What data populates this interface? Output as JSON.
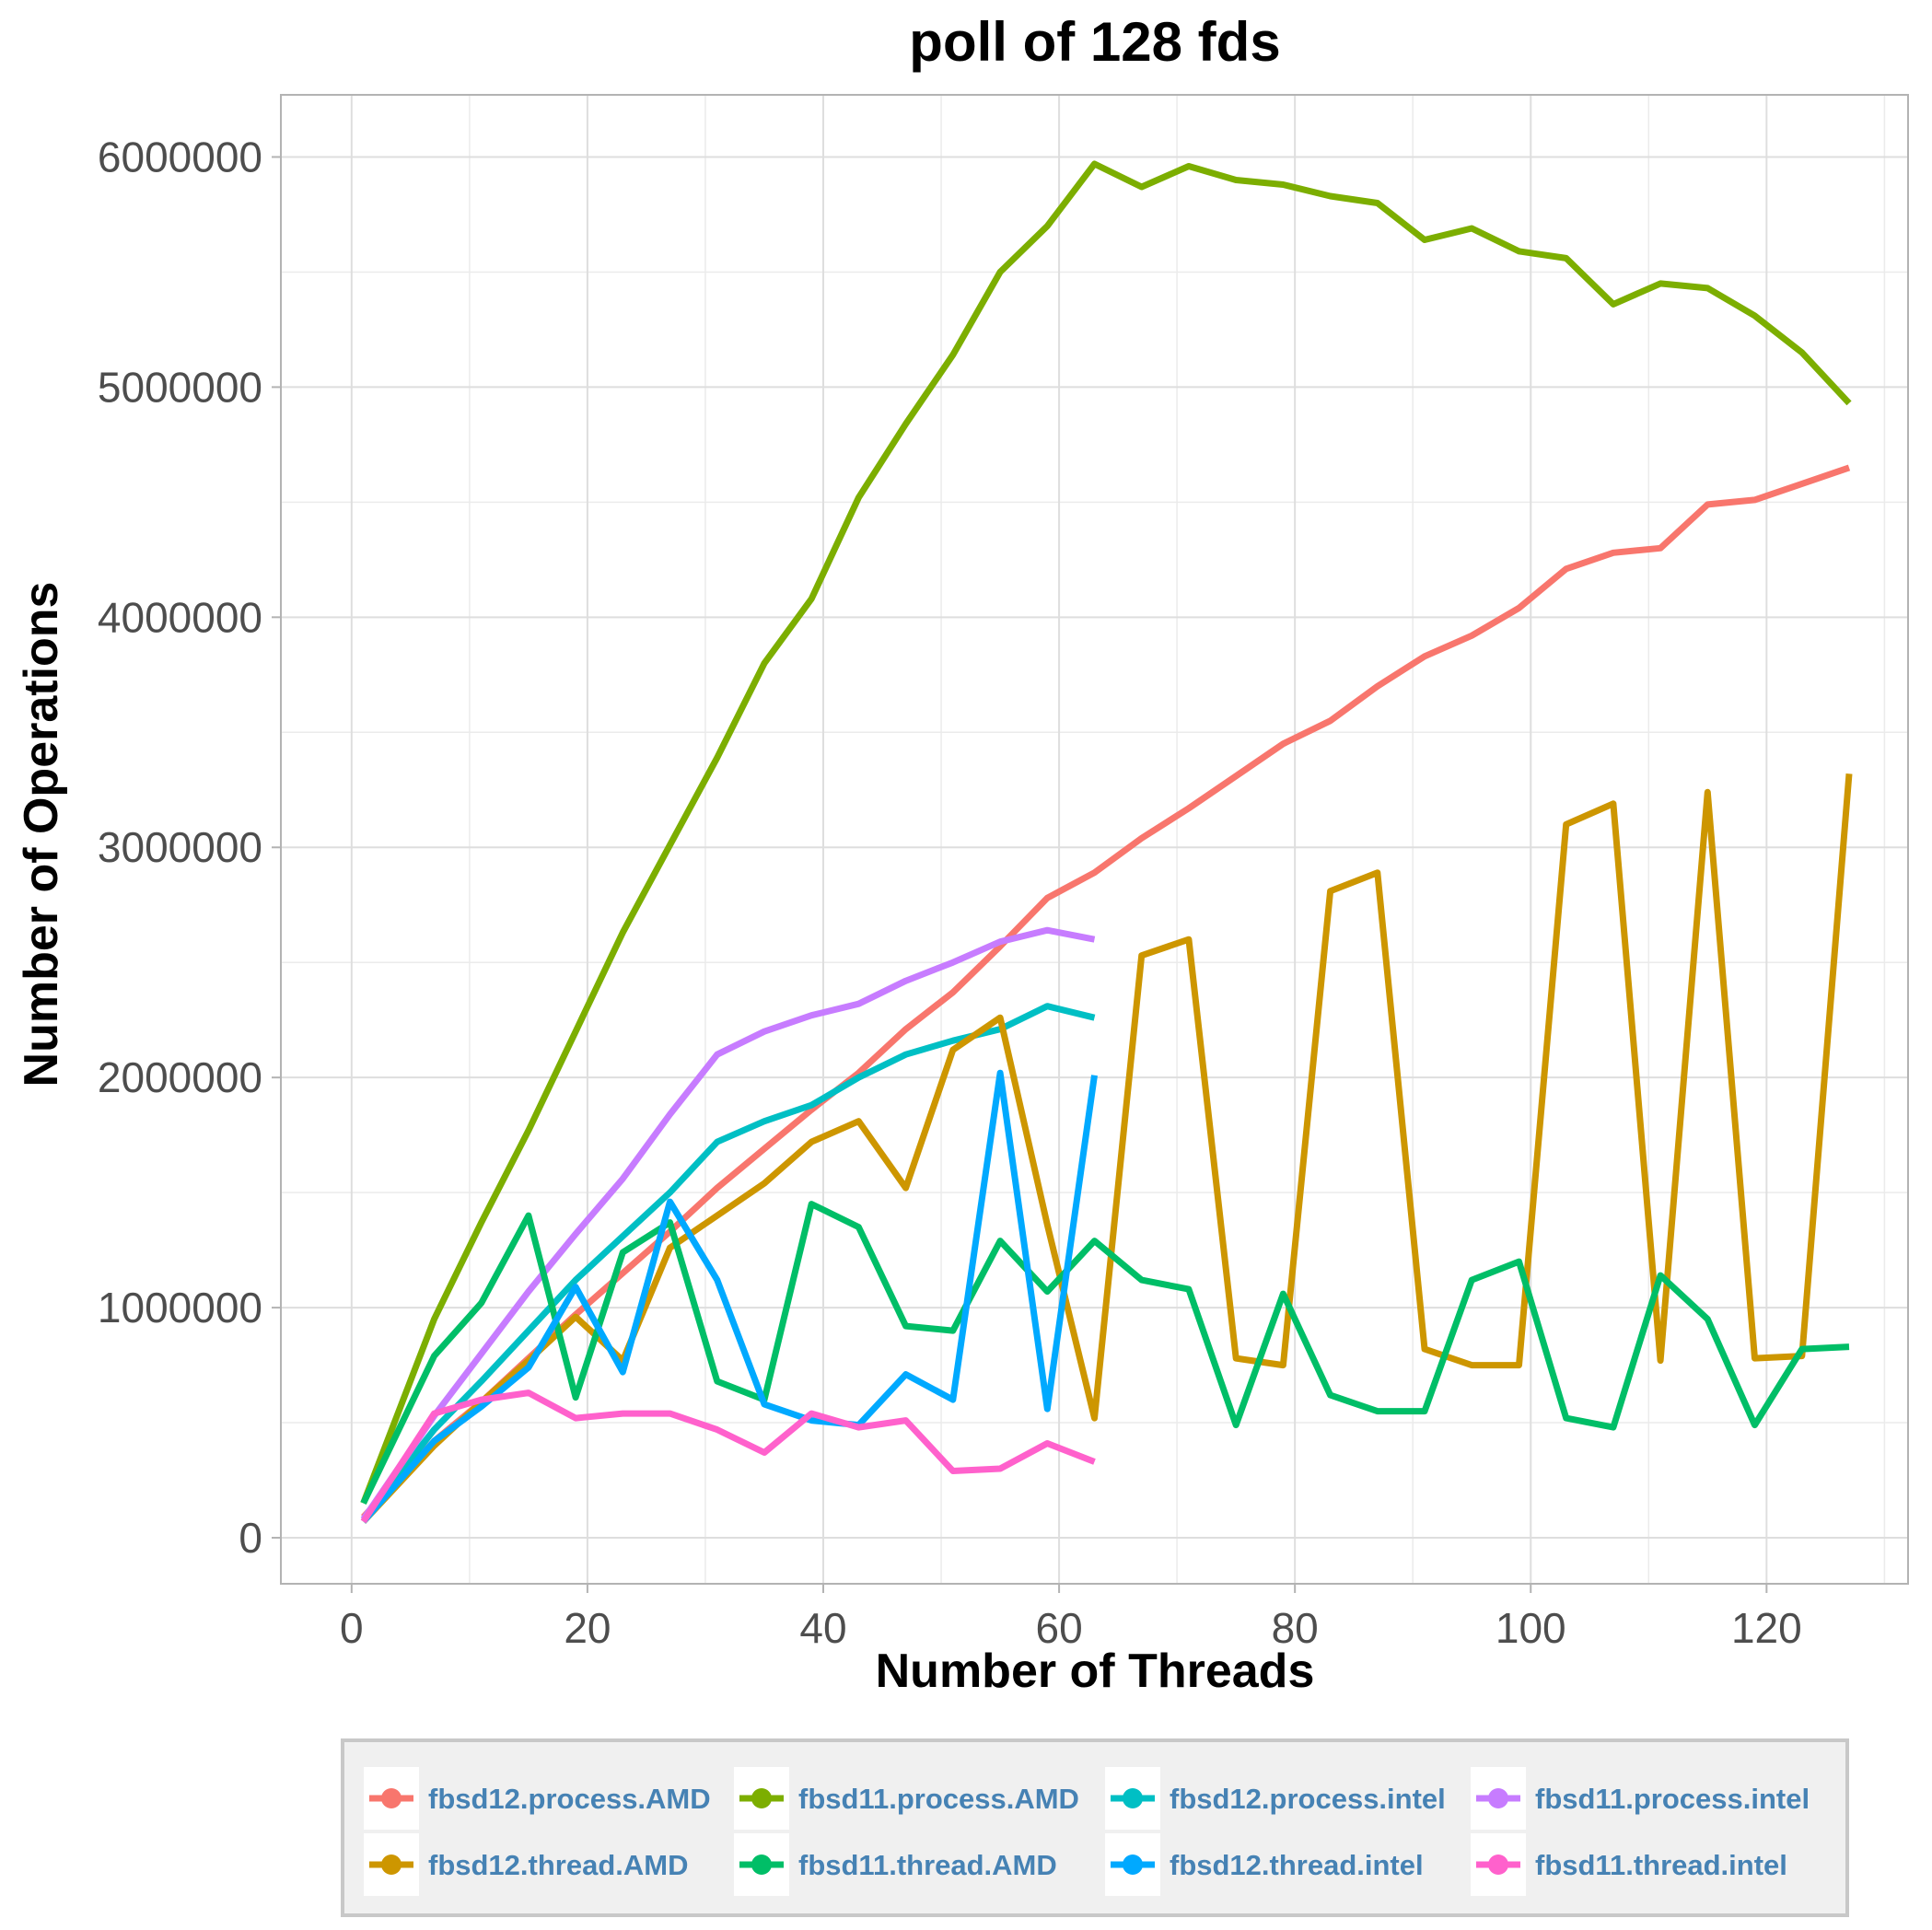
{
  "chart_data": {
    "type": "line",
    "title": "poll of 128 fds",
    "xlabel": "Number of Threads",
    "ylabel": "Number of Operations",
    "xlim": [
      -6,
      132
    ],
    "ylim": [
      -200000,
      6270000
    ],
    "xticks": [
      0,
      20,
      40,
      60,
      80,
      100,
      120
    ],
    "xtick_labels": [
      "0",
      "20",
      "40",
      "60",
      "80",
      "100",
      "120"
    ],
    "yticks": [
      0,
      1000000,
      2000000,
      3000000,
      4000000,
      5000000,
      6000000
    ],
    "ytick_labels": [
      "0",
      "1000000",
      "2000000",
      "3000000",
      "4000000",
      "5000000",
      "6000000"
    ],
    "grid": true,
    "legend_position": "bottom",
    "series": [
      {
        "name": "fbsd12.process.AMD",
        "color": "#F8766D",
        "x": [
          1,
          7,
          11,
          15,
          19,
          23,
          27,
          31,
          35,
          39,
          43,
          47,
          51,
          55,
          59,
          63,
          67,
          71,
          75,
          79,
          83,
          87,
          91,
          95,
          99,
          103,
          107,
          111,
          115,
          119,
          123,
          127
        ],
        "y": [
          90000,
          420000,
          590000,
          780000,
          970000,
          1150000,
          1330000,
          1520000,
          1690000,
          1860000,
          2020000,
          2210000,
          2370000,
          2570000,
          2780000,
          2890000,
          3040000,
          3170000,
          3310000,
          3450000,
          3550000,
          3700000,
          3830000,
          3920000,
          4040000,
          4210000,
          4280000,
          4300000,
          4490000,
          4510000,
          4580000,
          4650000
        ]
      },
      {
        "name": "fbsd11.process.AMD",
        "color": "#7CAE00",
        "x": [
          1,
          7,
          11,
          15,
          19,
          23,
          27,
          31,
          35,
          39,
          43,
          47,
          51,
          55,
          59,
          63,
          67,
          71,
          75,
          79,
          83,
          87,
          91,
          95,
          99,
          103,
          107,
          111,
          115,
          119,
          123,
          127
        ],
        "y": [
          150000,
          950000,
          1370000,
          1770000,
          2200000,
          2630000,
          3010000,
          3390000,
          3800000,
          4080000,
          4520000,
          4840000,
          5140000,
          5500000,
          5700000,
          5970000,
          5870000,
          5960000,
          5900000,
          5880000,
          5830000,
          5800000,
          5640000,
          5690000,
          5590000,
          5560000,
          5360000,
          5450000,
          5430000,
          5310000,
          5150000,
          4930000
        ]
      },
      {
        "name": "fbsd12.process.intel",
        "color": "#00BFC4",
        "x": [
          1,
          7,
          11,
          15,
          19,
          23,
          27,
          31,
          35,
          39,
          43,
          47,
          51,
          55,
          59,
          63
        ],
        "y": [
          80000,
          470000,
          680000,
          900000,
          1120000,
          1310000,
          1500000,
          1720000,
          1810000,
          1880000,
          2000000,
          2100000,
          2160000,
          2210000,
          2310000,
          2260000
        ]
      },
      {
        "name": "fbsd11.process.intel",
        "color": "#C77CFF",
        "x": [
          1,
          7,
          11,
          15,
          19,
          23,
          27,
          31,
          35,
          39,
          43,
          47,
          51,
          55,
          59,
          63
        ],
        "y": [
          80000,
          530000,
          800000,
          1070000,
          1320000,
          1560000,
          1840000,
          2100000,
          2200000,
          2270000,
          2320000,
          2420000,
          2500000,
          2590000,
          2640000,
          2600000
        ]
      },
      {
        "name": "fbsd12.thread.AMD",
        "color": "#CD9600",
        "x": [
          1,
          7,
          11,
          15,
          19,
          23,
          27,
          31,
          35,
          39,
          43,
          47,
          51,
          55,
          59,
          63,
          67,
          71,
          75,
          79,
          83,
          87,
          91,
          95,
          99,
          103,
          107,
          111,
          115,
          119,
          123,
          127
        ],
        "y": [
          70000,
          400000,
          590000,
          770000,
          960000,
          770000,
          1260000,
          1400000,
          1540000,
          1720000,
          1810000,
          1520000,
          2120000,
          2260000,
          1360000,
          520000,
          2530000,
          2600000,
          780000,
          750000,
          2810000,
          2890000,
          820000,
          750000,
          750000,
          3100000,
          3190000,
          770000,
          3240000,
          780000,
          790000,
          3320000
        ]
      },
      {
        "name": "fbsd11.thread.AMD",
        "color": "#00BE67",
        "x": [
          1,
          7,
          11,
          15,
          19,
          23,
          27,
          31,
          35,
          39,
          43,
          47,
          51,
          55,
          59,
          63,
          67,
          71,
          75,
          79,
          83,
          87,
          91,
          95,
          99,
          103,
          107,
          111,
          115,
          119,
          123,
          127
        ],
        "y": [
          150000,
          790000,
          1020000,
          1400000,
          610000,
          1240000,
          1370000,
          680000,
          600000,
          1450000,
          1350000,
          920000,
          900000,
          1290000,
          1070000,
          1290000,
          1120000,
          1080000,
          490000,
          1060000,
          620000,
          550000,
          550000,
          1120000,
          1200000,
          520000,
          480000,
          1140000,
          950000,
          490000,
          820000,
          830000
        ]
      },
      {
        "name": "fbsd12.thread.intel",
        "color": "#00A9FF",
        "x": [
          1,
          7,
          11,
          15,
          19,
          23,
          27,
          31,
          35,
          39,
          43,
          47,
          51,
          55,
          59,
          63
        ],
        "y": [
          70000,
          420000,
          570000,
          740000,
          1090000,
          720000,
          1460000,
          1120000,
          580000,
          510000,
          490000,
          710000,
          600000,
          2020000,
          560000,
          2010000
        ]
      },
      {
        "name": "fbsd11.thread.intel",
        "color": "#FF61CC",
        "x": [
          1,
          7,
          11,
          15,
          19,
          23,
          27,
          31,
          35,
          39,
          43,
          47,
          51,
          55,
          59,
          63
        ],
        "y": [
          70000,
          540000,
          600000,
          630000,
          520000,
          540000,
          540000,
          470000,
          370000,
          540000,
          480000,
          510000,
          290000,
          300000,
          410000,
          330000
        ]
      }
    ]
  }
}
